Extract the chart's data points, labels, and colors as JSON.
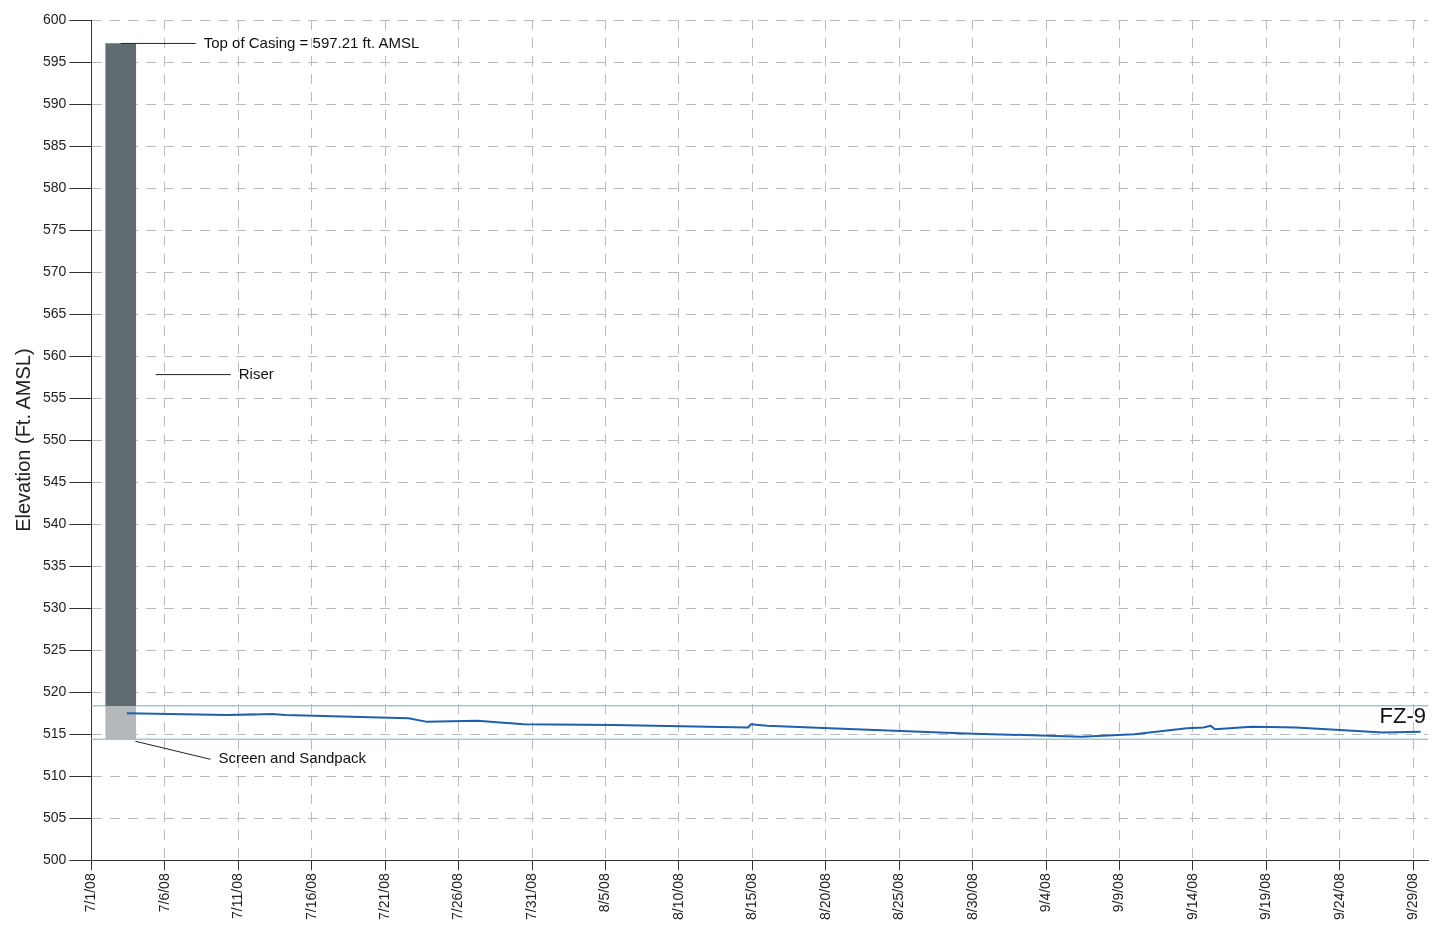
{
  "chart_data": {
    "type": "line",
    "ylabel": "Elevation (Ft. AMSL)",
    "xlim": [
      "--07-01",
      "--09-30"
    ],
    "xticks": [
      {
        "value": "--07-01",
        "label": "7/1/08"
      },
      {
        "value": "--07-06",
        "label": "7/6/08"
      },
      {
        "value": "--07-11",
        "label": "7/11/08"
      },
      {
        "value": "--07-16",
        "label": "7/16/08"
      },
      {
        "value": "--07-21",
        "label": "7/21/08"
      },
      {
        "value": "--07-26",
        "label": "7/26/08"
      },
      {
        "value": "--07-31",
        "label": "7/31/08"
      },
      {
        "value": "--08-05",
        "label": "8/5/08"
      },
      {
        "value": "--08-10",
        "label": "8/10/08"
      },
      {
        "value": "--08-15",
        "label": "8/15/08"
      },
      {
        "value": "--08-20",
        "label": "8/20/08"
      },
      {
        "value": "--08-25",
        "label": "8/25/08"
      },
      {
        "value": "--08-30",
        "label": "8/30/08"
      },
      {
        "value": "--09-04",
        "label": "9/4/08"
      },
      {
        "value": "--09-09",
        "label": "9/9/08"
      },
      {
        "value": "--09-14",
        "label": "9/14/08"
      },
      {
        "value": "--09-19",
        "label": "9/19/08"
      },
      {
        "value": "--09-24",
        "label": "9/24/08"
      },
      {
        "value": "--09-29",
        "label": "9/29/08"
      }
    ],
    "ylim": [
      500,
      600
    ],
    "yticks": [
      500,
      505,
      510,
      515,
      520,
      525,
      530,
      535,
      540,
      545,
      550,
      555,
      560,
      565,
      570,
      575,
      580,
      585,
      590,
      595,
      600
    ],
    "grid": true,
    "legend": false,
    "series": [
      {
        "type": "bar",
        "x": [
          "--07-03"
        ],
        "base": [
          518.4
        ],
        "values": [
          78.8
        ],
        "color": "#5f6b6e"
      },
      {
        "type": "bar",
        "x": [
          "--07-03"
        ],
        "base": [
          514.4
        ],
        "values": [
          4.0
        ],
        "color": "#b4b8ba"
      },
      {
        "color": "#1f5fb0",
        "x": [
          "--07-03T10:00",
          "--07-10T05:00",
          "--07-13T07:00",
          "--07-14T05:00",
          "--07-22T14:00",
          "--07-23T19:00",
          "--07-27T07:00",
          "--07-30T10:00",
          "--08-05T14:00",
          "--08-14T17:00",
          "--08-14T22:00",
          "--08-16",
          "--08-22",
          "--08-29T14:00",
          "--09-06T10:00",
          "--09-10",
          "--09-13T14:00",
          "--09-14T17:00",
          "--09-15T05:00",
          "--09-15T12:00",
          "--09-18",
          "--09-21",
          "--09-24",
          "--09-26T22:00",
          "--09-29T12:00"
        ],
        "values": [
          517.5,
          517.3,
          517.4,
          517.3,
          516.9,
          516.5,
          516.6,
          516.2,
          516.1,
          515.8,
          516.2,
          516.0,
          515.6,
          515.1,
          514.7,
          515.0,
          515.7,
          515.8,
          516.0,
          515.6,
          515.9,
          515.8,
          515.5,
          515.2,
          515.3
        ]
      }
    ],
    "ref_lines": [
      {
        "axis": "y",
        "value": 518.4,
        "color": "#9ec9d4"
      },
      {
        "axis": "y",
        "value": 514.4,
        "color": "#9ec9d4"
      }
    ],
    "annotations": [
      {
        "text": "Top of Casing = 597.21 ft. AMSL",
        "x": "--07-03",
        "y": 597.21
      },
      "Riser",
      {
        "text": "Screen and Sandpack",
        "x": "--07-04",
        "y": 514.4
      },
      "FZ-9"
    ]
  }
}
